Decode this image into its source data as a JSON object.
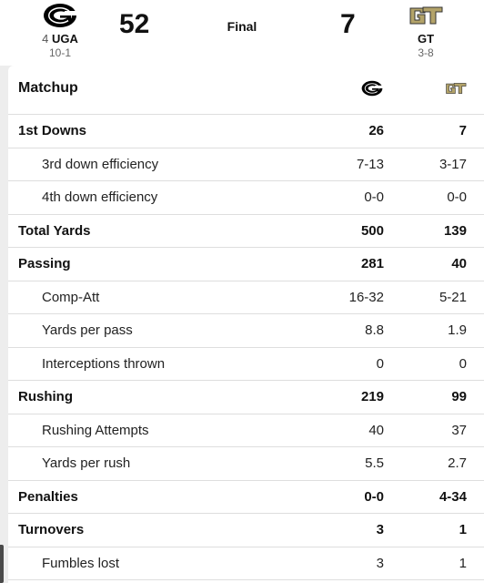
{
  "scoreboard": {
    "home": {
      "rank": "4",
      "abbr": "UGA",
      "record": "10-1",
      "score": "52",
      "logo_icon": "georgia-g-logo-icon",
      "color": "#000000"
    },
    "away": {
      "abbr": "GT",
      "record": "3-8",
      "score": "7",
      "logo_icon": "georgia-tech-gt-logo-icon",
      "color": "#b3a369"
    },
    "status": "Final"
  },
  "matchup": {
    "header_label": "Matchup",
    "rows": [
      {
        "label": "1st Downs",
        "home": "26",
        "away": "7",
        "level": "main"
      },
      {
        "label": "3rd down efficiency",
        "home": "7-13",
        "away": "3-17",
        "level": "sub"
      },
      {
        "label": "4th down efficiency",
        "home": "0-0",
        "away": "0-0",
        "level": "sub"
      },
      {
        "label": "Total Yards",
        "home": "500",
        "away": "139",
        "level": "main"
      },
      {
        "label": "Passing",
        "home": "281",
        "away": "40",
        "level": "main"
      },
      {
        "label": "Comp-Att",
        "home": "16-32",
        "away": "5-21",
        "level": "sub"
      },
      {
        "label": "Yards per pass",
        "home": "8.8",
        "away": "1.9",
        "level": "sub"
      },
      {
        "label": "Interceptions thrown",
        "home": "0",
        "away": "0",
        "level": "sub"
      },
      {
        "label": "Rushing",
        "home": "219",
        "away": "99",
        "level": "main"
      },
      {
        "label": "Rushing Attempts",
        "home": "40",
        "away": "37",
        "level": "sub"
      },
      {
        "label": "Yards per rush",
        "home": "5.5",
        "away": "2.7",
        "level": "sub"
      },
      {
        "label": "Penalties",
        "home": "0-0",
        "away": "4-34",
        "level": "main"
      },
      {
        "label": "Turnovers",
        "home": "3",
        "away": "1",
        "level": "main"
      },
      {
        "label": "Fumbles lost",
        "home": "3",
        "away": "1",
        "level": "sub"
      }
    ]
  }
}
